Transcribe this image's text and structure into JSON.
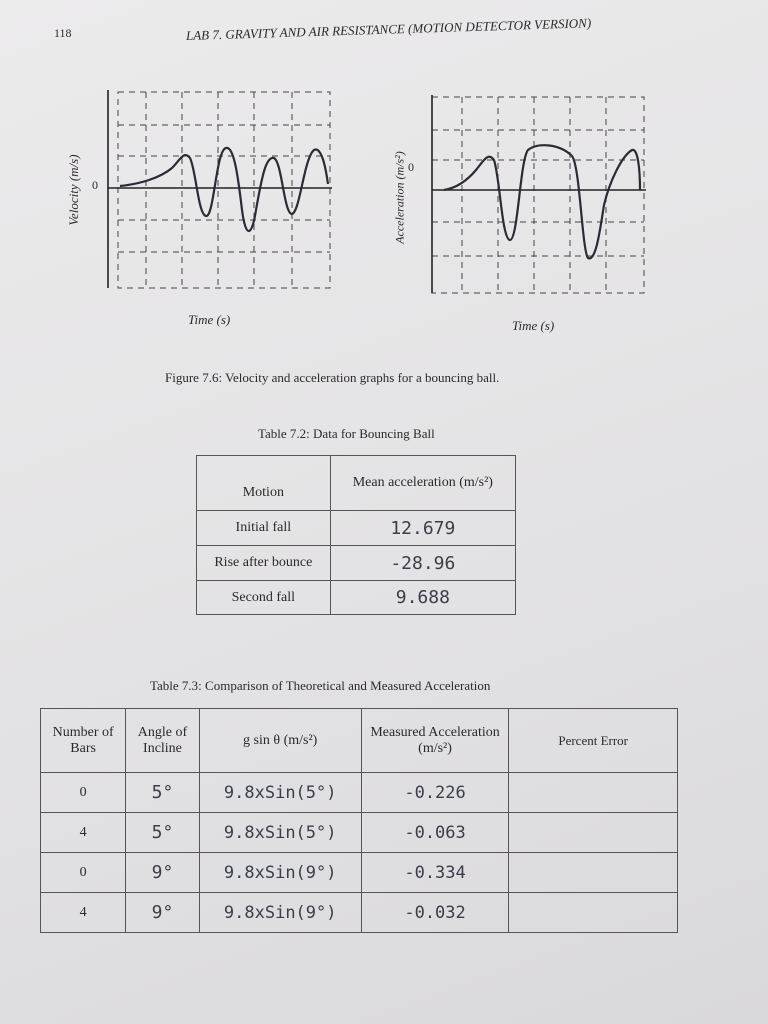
{
  "page_number": "118",
  "header": "LAB 7. GRAVITY AND AIR RESISTANCE (MOTION DETECTOR VERSION)",
  "figure": {
    "graphs": [
      {
        "y_label": "Velocity (m/s)",
        "zero_label": "0",
        "x_label": "Time (s)"
      },
      {
        "y_label": "Acceleration (m/s²)",
        "zero_label": "0",
        "x_label": "Time (s)"
      }
    ],
    "caption": "Figure 7.6: Velocity and acceleration graphs for a bouncing ball."
  },
  "table_72": {
    "caption": "Table 7.2: Data for Bouncing Ball",
    "header": [
      "Motion",
      "Mean acceleration (m/s²)"
    ],
    "rows": [
      [
        "Initial fall",
        "12.679"
      ],
      [
        "Rise after bounce",
        "-28.96"
      ],
      [
        "Second fall",
        "9.688"
      ]
    ]
  },
  "table_73": {
    "caption": "Table 7.3: Comparison of Theoretical and Measured Acceleration",
    "header": [
      "Number of Bars",
      "Angle of Incline",
      "g sin θ (m/s²)",
      "Measured Acceleration (m/s²)",
      "Percent Error"
    ],
    "rows": [
      [
        "0",
        "5°",
        "9.8xSin(5°)",
        "-0.226"
      ],
      [
        "4",
        "5°",
        "9.8xSin(5°)",
        "-0.063"
      ],
      [
        "0",
        "9°",
        "9.8xSin(9°)",
        "-0.334"
      ],
      [
        "4",
        "9°",
        "9.8xSin(9°)",
        "-0.032"
      ]
    ]
  }
}
